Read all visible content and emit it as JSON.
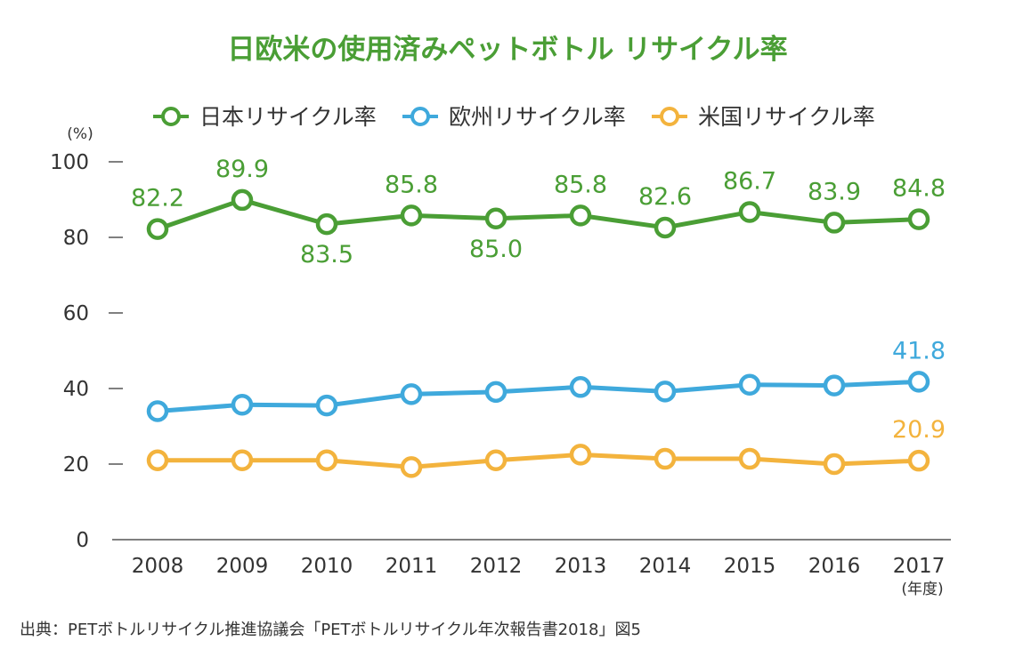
{
  "chart_data": {
    "type": "line",
    "title": "日欧米の使用済みペットボトル リサイクル率",
    "y_unit": "(%)",
    "x_unit": "(年度)",
    "ylim": [
      0,
      100
    ],
    "yticks": [
      0,
      20,
      40,
      60,
      80,
      100
    ],
    "categories": [
      "2008",
      "2009",
      "2010",
      "2011",
      "2012",
      "2013",
      "2014",
      "2015",
      "2016",
      "2017"
    ],
    "legend_position": "top",
    "grid": false,
    "series": [
      {
        "name": "日本リサイクル率",
        "color": "#4a9e35",
        "values": [
          82.2,
          89.9,
          83.5,
          85.8,
          85.0,
          85.8,
          82.6,
          86.7,
          83.9,
          84.8
        ],
        "labels": [
          "82.2",
          "89.9",
          "83.5",
          "85.8",
          "85.0",
          "85.8",
          "82.6",
          "86.7",
          "83.9",
          "84.8"
        ],
        "label_side": [
          "above",
          "above",
          "below",
          "above",
          "below",
          "above",
          "above",
          "above",
          "above",
          "above"
        ]
      },
      {
        "name": "欧州リサイクル率",
        "color": "#3fa9dc",
        "values": [
          34.0,
          35.7,
          35.5,
          38.5,
          39.1,
          40.4,
          39.2,
          41.0,
          40.8,
          41.8
        ],
        "labels": [
          "",
          "",
          "",
          "",
          "",
          "",
          "",
          "",
          "",
          "41.8"
        ],
        "label_side": [
          "above",
          "above",
          "above",
          "above",
          "above",
          "above",
          "above",
          "above",
          "above",
          "above"
        ]
      },
      {
        "name": "米国リサイクル率",
        "color": "#f3b33d",
        "values": [
          21.0,
          21.0,
          21.0,
          19.2,
          21.0,
          22.5,
          21.4,
          21.4,
          20.0,
          20.9
        ],
        "labels": [
          "",
          "",
          "",
          "",
          "",
          "",
          "",
          "",
          "",
          "20.9"
        ],
        "label_side": [
          "above",
          "above",
          "above",
          "above",
          "above",
          "above",
          "above",
          "above",
          "above",
          "above"
        ]
      }
    ],
    "source": "出典：PETボトルリサイクル推進協議会「PETボトルリサイクル年次報告書2018」図5"
  }
}
